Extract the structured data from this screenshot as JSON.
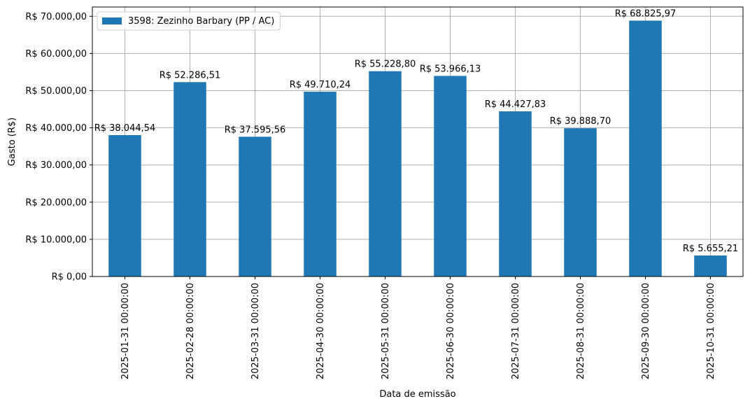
{
  "chart_data": {
    "type": "bar",
    "title": "",
    "xlabel": "Data de emissão",
    "ylabel": "Gasto (R$)",
    "ylim": [
      0,
      72500
    ],
    "yticks": [
      0,
      10000,
      20000,
      30000,
      40000,
      50000,
      60000,
      70000
    ],
    "ytick_labels": [
      "R$ 0,00",
      "R$ 10.000,00",
      "R$ 20.000,00",
      "R$ 30.000,00",
      "R$ 40.000,00",
      "R$ 50.000,00",
      "R$ 60.000,00",
      "R$ 70.000,00"
    ],
    "grid": true,
    "legend_position": "top-left",
    "categories": [
      "2025-01-31 00:00:00",
      "2025-02-28 00:00:00",
      "2025-03-31 00:00:00",
      "2025-04-30 00:00:00",
      "2025-05-31 00:00:00",
      "2025-06-30 00:00:00",
      "2025-07-31 00:00:00",
      "2025-08-31 00:00:00",
      "2025-09-30 00:00:00",
      "2025-10-31 00:00:00"
    ],
    "series": [
      {
        "name": "3598: Zezinho Barbary (PP / AC)",
        "color": "#1f77b4",
        "values": [
          38044.54,
          52286.51,
          37595.56,
          49710.24,
          55228.8,
          53966.13,
          44427.83,
          39888.7,
          68825.97,
          5655.21
        ],
        "labels": [
          "R$ 38.044,54",
          "R$ 52.286,51",
          "R$ 37.595,56",
          "R$ 49.710,24",
          "R$ 55.228,80",
          "R$ 53.966,13",
          "R$ 44.427,83",
          "R$ 39.888,70",
          "R$ 68.825,97",
          "R$ 5.655,21"
        ]
      }
    ]
  }
}
